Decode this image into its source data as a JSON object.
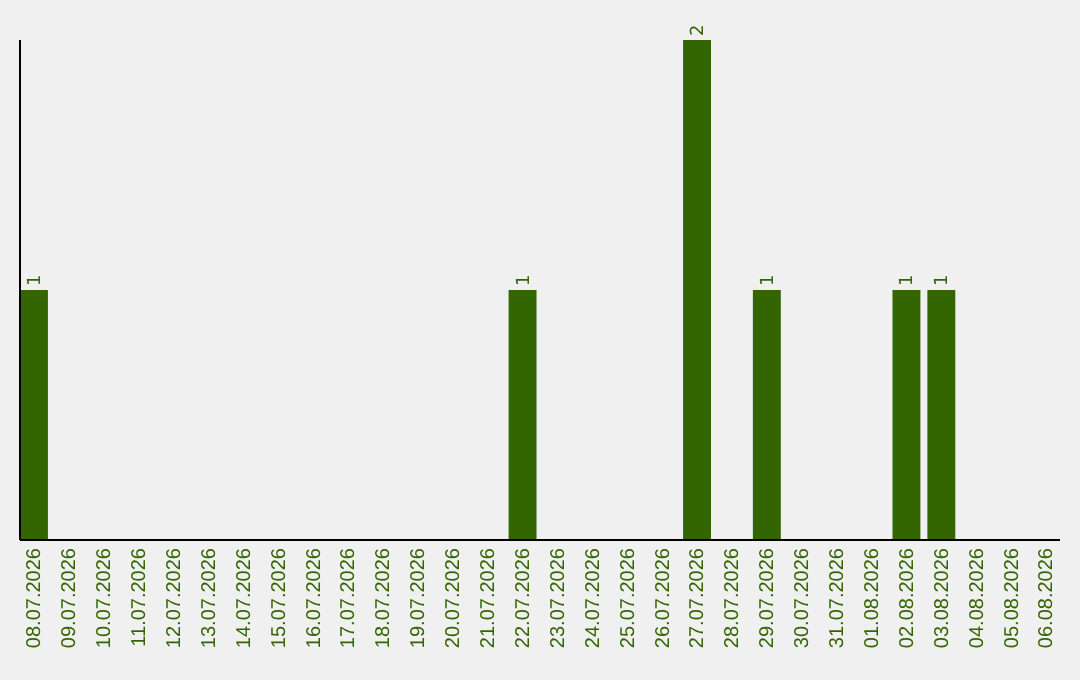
{
  "chart_data": {
    "type": "bar",
    "categories": [
      "08.07.2026",
      "09.07.2026",
      "10.07.2026",
      "11.07.2026",
      "12.07.2026",
      "13.07.2026",
      "14.07.2026",
      "15.07.2026",
      "16.07.2026",
      "17.07.2026",
      "18.07.2026",
      "19.07.2026",
      "20.07.2026",
      "21.07.2026",
      "22.07.2026",
      "23.07.2026",
      "24.07.2026",
      "25.07.2026",
      "26.07.2026",
      "27.07.2026",
      "28.07.2026",
      "29.07.2026",
      "30.07.2026",
      "31.07.2026",
      "01.08.2026",
      "02.08.2026",
      "03.08.2026",
      "04.08.2026",
      "05.08.2026",
      "06.08.2026"
    ],
    "values": [
      1,
      0,
      0,
      0,
      0,
      0,
      0,
      0,
      0,
      0,
      0,
      0,
      0,
      0,
      1,
      0,
      0,
      0,
      0,
      2,
      0,
      1,
      0,
      0,
      0,
      1,
      1,
      0,
      0,
      0
    ],
    "value_labels": [
      "1",
      null,
      null,
      null,
      null,
      null,
      null,
      null,
      null,
      null,
      null,
      null,
      null,
      null,
      "1",
      null,
      null,
      null,
      null,
      "2",
      null,
      "1",
      null,
      null,
      null,
      "1",
      "1",
      null,
      null,
      null
    ],
    "color": "#336600"
  }
}
